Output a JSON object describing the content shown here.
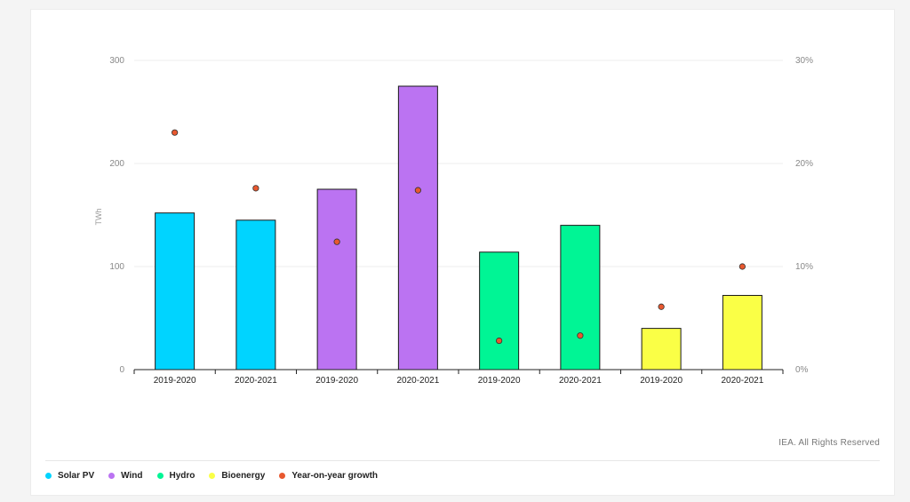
{
  "chart_data": {
    "type": "bar",
    "categories": [
      "2019-2020",
      "2020-2021",
      "2019-2020",
      "2020-2021",
      "2019-2020",
      "2020-2021",
      "2019-2020",
      "2020-2021"
    ],
    "series": [
      {
        "name": "Solar PV",
        "values": [
          152,
          145,
          null,
          null,
          null,
          null,
          null,
          null
        ],
        "color": "#00d4ff"
      },
      {
        "name": "Wind",
        "values": [
          null,
          null,
          175,
          275,
          null,
          null,
          null,
          null
        ],
        "color": "#bb73f2"
      },
      {
        "name": "Hydro",
        "values": [
          null,
          null,
          null,
          null,
          114,
          140,
          null,
          null
        ],
        "color": "#00f595"
      },
      {
        "name": "Bioenergy",
        "values": [
          null,
          null,
          null,
          null,
          null,
          null,
          40,
          72
        ],
        "color": "#faff46"
      }
    ],
    "growth": {
      "name": "Year-on-year growth",
      "values": [
        23,
        17.6,
        12.4,
        17.4,
        2.8,
        3.3,
        6.1,
        10
      ],
      "color": "#e8582f"
    },
    "ylabel": "TWh",
    "ylim": [
      0,
      300
    ],
    "y2lim": [
      0,
      30
    ],
    "yticks": [
      "0",
      "100",
      "200",
      "300"
    ],
    "y2ticks": [
      "0%",
      "10%",
      "20%",
      "30%"
    ],
    "grid": true,
    "legend_placement": "bottom-left"
  },
  "credit": "IEA. All Rights Reserved"
}
